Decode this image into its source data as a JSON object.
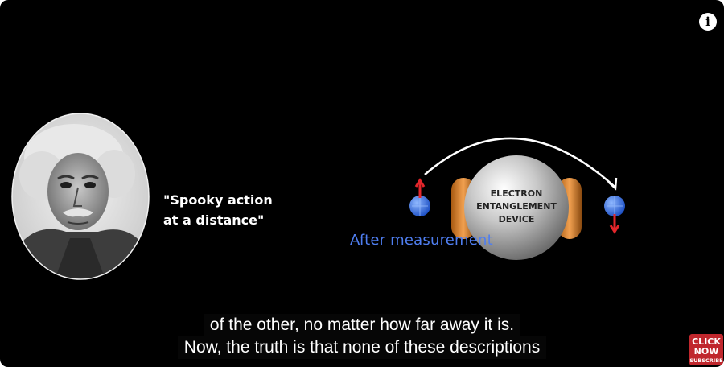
{
  "video": {
    "info_icon": "info-icon",
    "quote_line1": "\"Spooky action",
    "quote_line2": "at a distance\"",
    "device_line1": "ELECTRON",
    "device_line2": "ENTANGLEMENT",
    "device_line3": "DEVICE",
    "after_label": "After measurement",
    "colors": {
      "background": "#000000",
      "after_text": "#4f7ef0",
      "subscribe_red": "#c0272d"
    }
  },
  "captions": {
    "line1": "of the other, no matter how far away it is.",
    "line2": "Now, the truth is that none of these descriptions"
  },
  "subscribe_logo": {
    "line1": "CLICK",
    "line2": "NOW",
    "line3": "SUBSCRIBE"
  }
}
